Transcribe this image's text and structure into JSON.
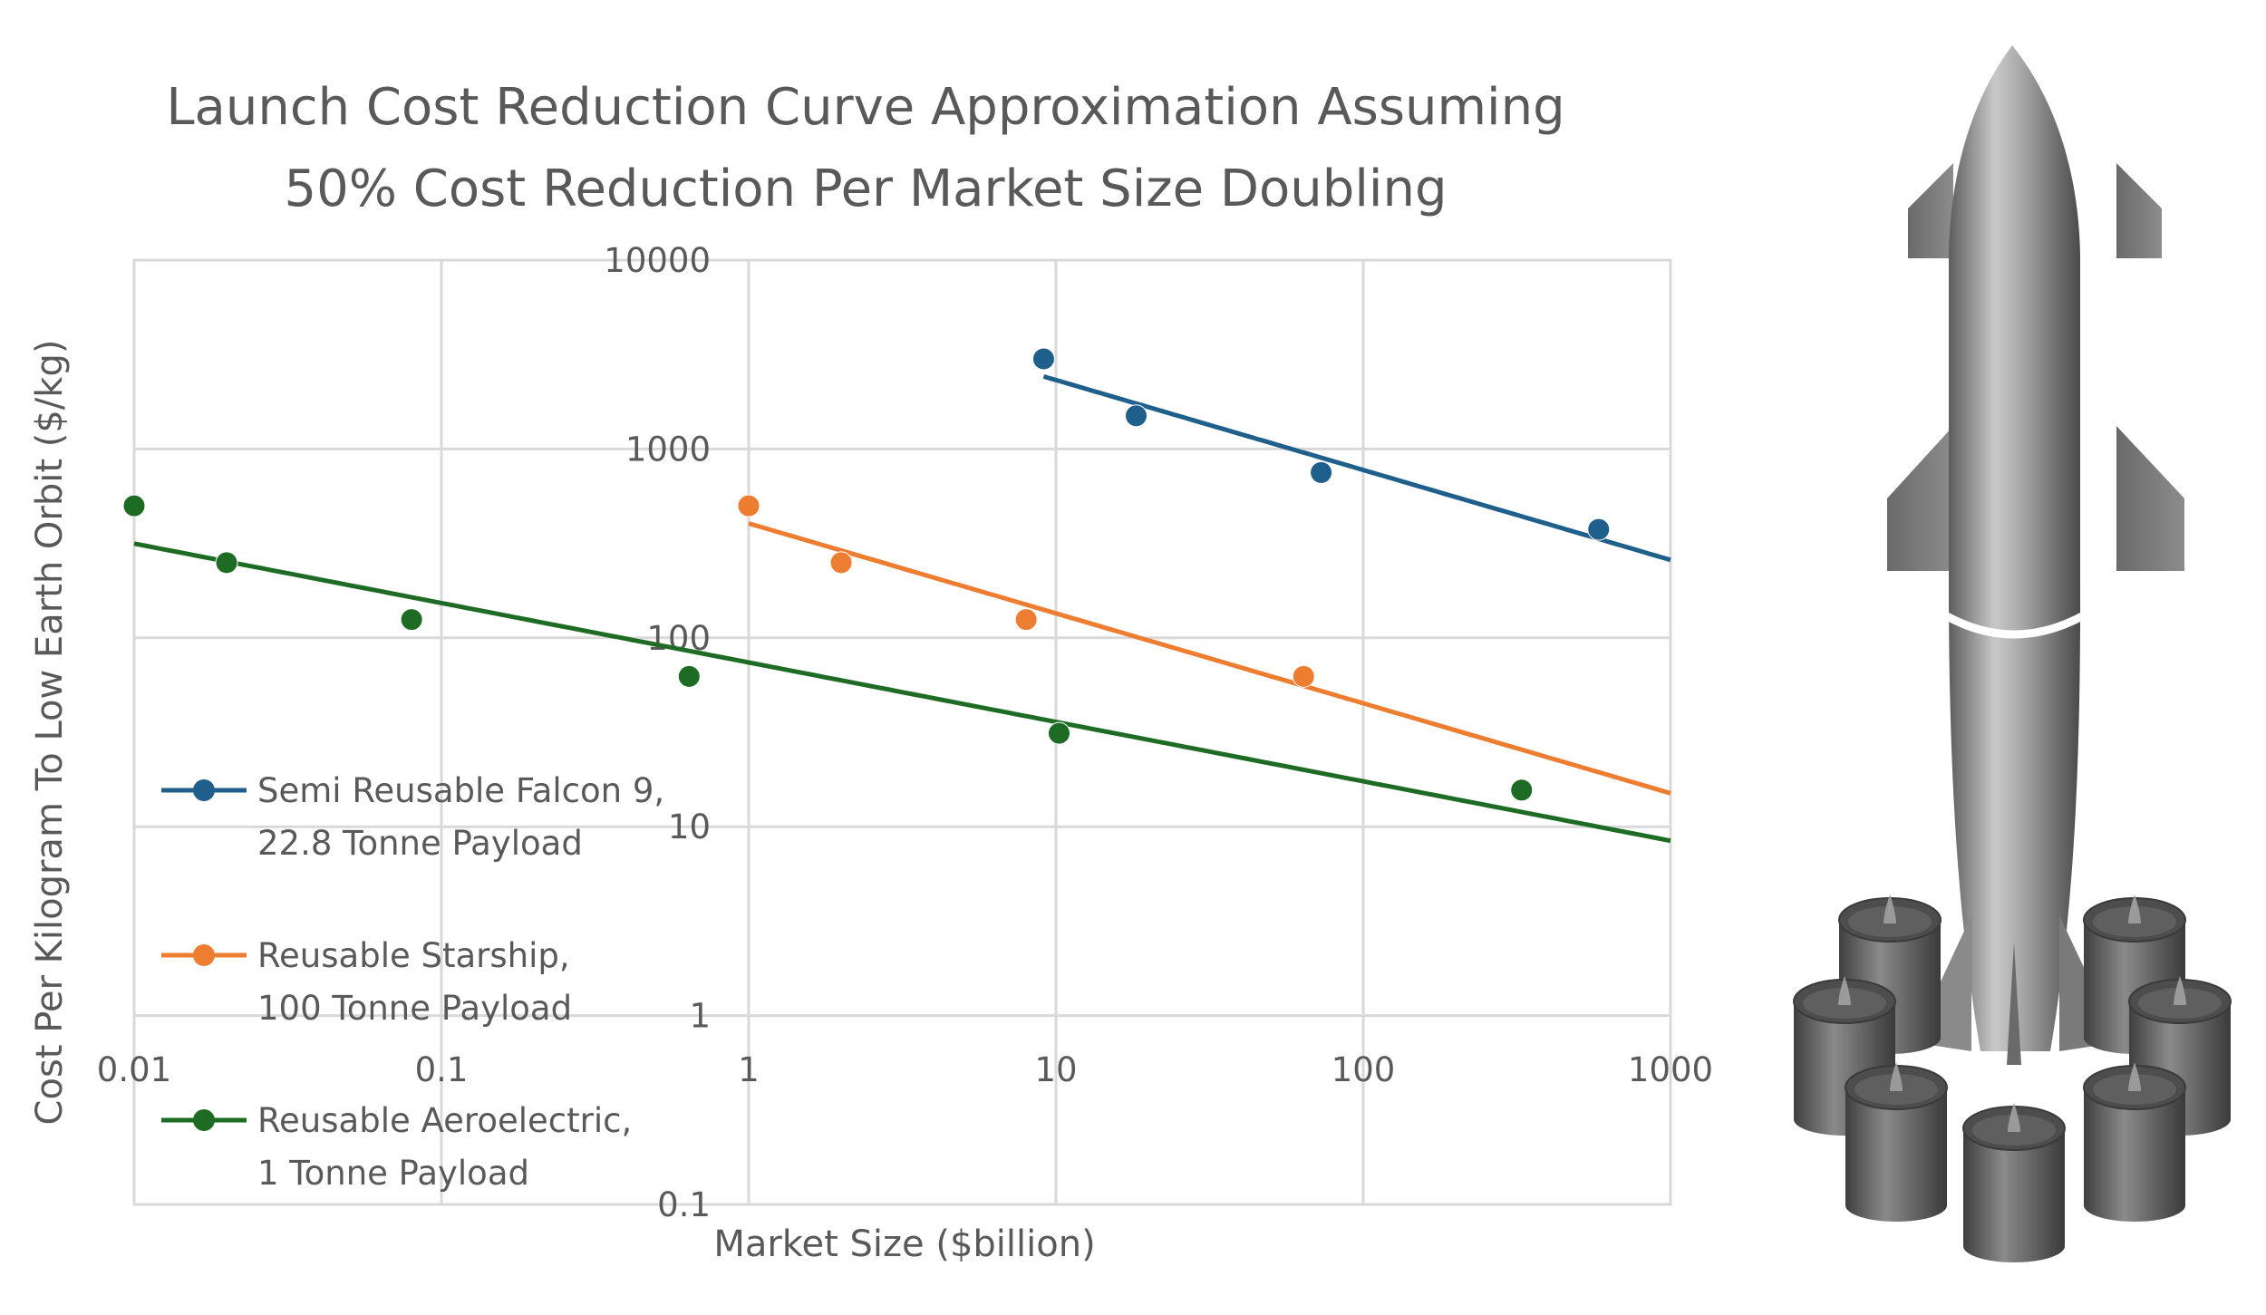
{
  "chart_data": {
    "type": "line",
    "title_lines": [
      "Launch Cost Reduction Curve Approximation  Assuming",
      "50% Cost Reduction Per Market Size Doubling"
    ],
    "xlabel": "Market Size ($billion)",
    "ylabel": "Cost Per Kilogram To Low Earth Orbit ($/kg)",
    "x_scale": "log",
    "y_scale": "log",
    "xlim": [
      0.01,
      1000
    ],
    "ylim": [
      0.1,
      10000
    ],
    "x_ticks": [
      "0.01",
      "0.1",
      "1",
      "10",
      "100",
      "1000"
    ],
    "y_ticks": [
      "0.1",
      "1",
      "10",
      "100",
      "1000",
      "10000"
    ],
    "grid": true,
    "legend_position": "left",
    "series": [
      {
        "name_lines": [
          "Semi Reusable Falcon 9,",
          "22.8 Tonne Payload"
        ],
        "color": "#1f5f8b",
        "curve_x_range": [
          9.12,
          1000
        ],
        "markers": [
          {
            "x": 9.12,
            "y": 3000
          },
          {
            "x": 18.24,
            "y": 1500
          },
          {
            "x": 72.96,
            "y": 750
          },
          {
            "x": 583.7,
            "y": 375
          }
        ]
      },
      {
        "name_lines": [
          "Reusable Starship,",
          "100 Tonne Payload"
        ],
        "color": "#ed7d31",
        "curve_x_range": [
          1,
          1000
        ],
        "markers": [
          {
            "x": 1,
            "y": 500
          },
          {
            "x": 2,
            "y": 250
          },
          {
            "x": 8,
            "y": 125
          },
          {
            "x": 64,
            "y": 62.5
          }
        ]
      },
      {
        "name_lines": [
          "Reusable Aeroelectric,",
          "1 Tonne Payload"
        ],
        "color": "#1e6b24",
        "curve_x_range": [
          0.01,
          1000
        ],
        "markers": [
          {
            "x": 0.01,
            "y": 500
          },
          {
            "x": 0.02,
            "y": 250
          },
          {
            "x": 0.08,
            "y": 125
          },
          {
            "x": 0.64,
            "y": 62.5
          },
          {
            "x": 10.24,
            "y": 31.25
          },
          {
            "x": 327.68,
            "y": 15.625
          }
        ]
      }
    ]
  },
  "illustration": {
    "name": "rocket-illustration",
    "body_color": "#9a9a9a",
    "engine_color": "#6f6f6f"
  }
}
